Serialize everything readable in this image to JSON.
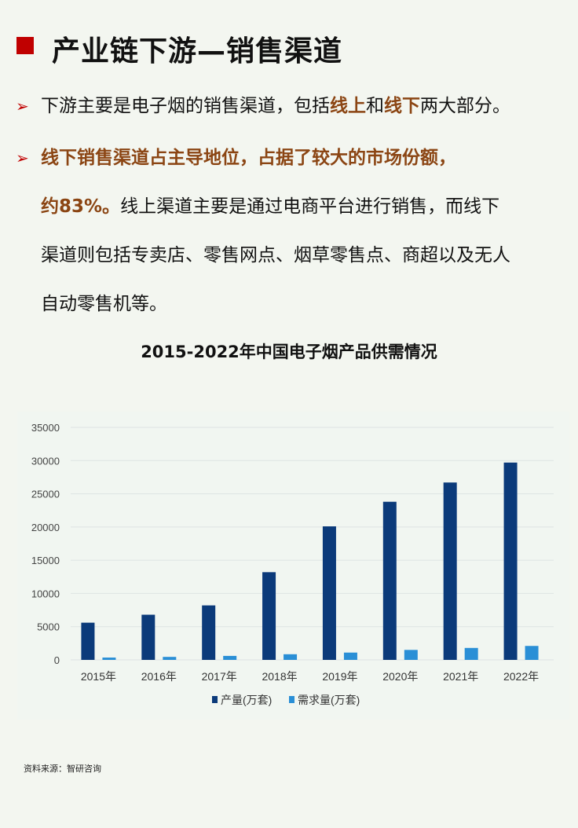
{
  "header": {
    "title": "产业链下游—销售渠道"
  },
  "bullets": [
    {
      "parts": [
        "下游主要是电子烟的销售渠道，包括",
        "线上",
        "和",
        "线下",
        "两大部分。"
      ]
    },
    {
      "highlight": "线下销售渠道占主导地位，占据了较大的市场份额，约83%。",
      "rest": "线上渠道主要是通过电商平台进行销售，而线下渠道则包括专卖店、零售网点、烟草零售点、商超以及无人自动零售机等。",
      "lines": [
        "线下销售渠道占主导地位，占据了较大的市场份额，",
        "约83%。",
        "线上渠道主要是通过电商平台进行销售，而线下",
        "渠道则包括专卖店、零售网点、烟草零售点、商超以及无人",
        "自动零售机等。"
      ]
    }
  ],
  "colors": {
    "accent_red": "#c00000",
    "highlight_brown": "#8b4513",
    "production": "#0b3a7a",
    "demand": "#2a8fd6"
  },
  "chart_data": {
    "type": "bar",
    "title": "2015-2022年中国电子烟产品供需情况",
    "categories": [
      "2015年",
      "2016年",
      "2017年",
      "2018年",
      "2019年",
      "2020年",
      "2021年",
      "2022年"
    ],
    "series": [
      {
        "name": "产量(万套)",
        "values": [
          5600,
          6800,
          8200,
          13200,
          20100,
          23800,
          26700,
          29700
        ]
      },
      {
        "name": "需求量(万套)",
        "values": [
          350,
          450,
          600,
          850,
          1100,
          1500,
          1800,
          2100
        ]
      }
    ],
    "yticks": [
      "0",
      "5000",
      "10000",
      "15000",
      "20000",
      "25000",
      "30000",
      "35000"
    ],
    "ylim": [
      0,
      35000
    ],
    "grid": true,
    "legend": "bottom"
  },
  "footer": {
    "source": "资料来源：智研咨询"
  }
}
